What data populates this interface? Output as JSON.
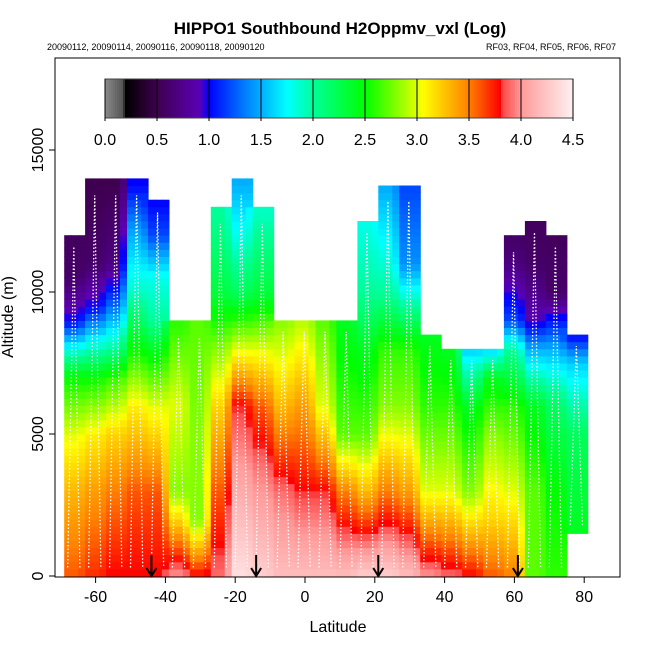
{
  "chart_data": {
    "type": "heatmap",
    "title": "HIPPO1 Southbound H2Oppmv_vxl (Log)",
    "subtitle_left": "20090112, 20090114, 20090116, 20090118, 20090120",
    "subtitle_right": "RF03, RF04, RF05, RF06, RF07",
    "xlabel": "Latitude",
    "ylabel": "Altitude (m)",
    "xlim": [
      -72,
      90
    ],
    "ylim": [
      0,
      18300
    ],
    "x_ticks": [
      -60,
      -40,
      -20,
      0,
      20,
      40,
      60,
      80
    ],
    "x_tick_labels": [
      "-60",
      "-40",
      "-20",
      "0",
      "20",
      "40",
      "60",
      "80"
    ],
    "y_ticks": [
      0,
      5000,
      10000,
      15000
    ],
    "y_tick_labels": [
      "0",
      "5000",
      "10000",
      "15000"
    ],
    "colorbar": {
      "range": [
        0,
        4.5
      ],
      "ticks": [
        0,
        0.5,
        1,
        1.5,
        2,
        2.5,
        3,
        3.5,
        4,
        4.5
      ],
      "tick_labels": [
        "0.0",
        "0.5",
        "1.0",
        "1.5",
        "2.0",
        "2.5",
        "3.0",
        "3.5",
        "4.0",
        "4.5"
      ],
      "color_stops": [
        [
          0,
          "#8a8a8a"
        ],
        [
          0.17,
          "#555555"
        ],
        [
          0.2,
          "#000000"
        ],
        [
          0.5,
          "#3f0050"
        ],
        [
          0.9,
          "#5a00b4"
        ],
        [
          1.0,
          "#0000ff"
        ],
        [
          1.35,
          "#0080ff"
        ],
        [
          1.75,
          "#00ffff"
        ],
        [
          2.0,
          "#00ff98"
        ],
        [
          2.5,
          "#00ff00"
        ],
        [
          3.0,
          "#e0ff00"
        ],
        [
          3.05,
          "#ffff00"
        ],
        [
          3.5,
          "#ff8000"
        ],
        [
          3.8,
          "#ff0000"
        ],
        [
          3.82,
          "#ff4848"
        ],
        [
          4.0,
          "#ff9a9a"
        ],
        [
          4.5,
          "#fff2f2"
        ]
      ]
    },
    "column_width_deg": 6,
    "profiles": [
      {
        "lat": -66,
        "top": 12000,
        "points": [
          [
            0,
            3.6
          ],
          [
            3000,
            3.3
          ],
          [
            5000,
            3.0
          ],
          [
            7000,
            2.5
          ],
          [
            8000,
            1.8
          ],
          [
            9000,
            1.0
          ],
          [
            10500,
            0.6
          ],
          [
            12000,
            0.55
          ]
        ]
      },
      {
        "lat": -60,
        "top": 13800,
        "points": [
          [
            0,
            3.7
          ],
          [
            3000,
            3.4
          ],
          [
            5000,
            3.1
          ],
          [
            7000,
            2.5
          ],
          [
            8200,
            1.8
          ],
          [
            9500,
            1.0
          ],
          [
            11000,
            0.6
          ],
          [
            13800,
            0.5
          ]
        ]
      },
      {
        "lat": -54,
        "top": 13800,
        "points": [
          [
            0,
            3.8
          ],
          [
            3000,
            3.5
          ],
          [
            5000,
            3.2
          ],
          [
            7000,
            2.6
          ],
          [
            8000,
            2.0
          ],
          [
            9500,
            1.3
          ],
          [
            11000,
            0.7
          ],
          [
            13800,
            0.5
          ]
        ]
      },
      {
        "lat": -48,
        "top": 13800,
        "points": [
          [
            0,
            3.8
          ],
          [
            3000,
            3.6
          ],
          [
            6000,
            3.1
          ],
          [
            8000,
            2.5
          ],
          [
            10000,
            1.9
          ],
          [
            12000,
            1.5
          ],
          [
            13800,
            1.0
          ]
        ]
      },
      {
        "lat": -42,
        "top": 13200,
        "points": [
          [
            0,
            3.8
          ],
          [
            3000,
            3.6
          ],
          [
            6000,
            3.0
          ],
          [
            8000,
            2.4
          ],
          [
            9000,
            2.0
          ],
          [
            10500,
            1.8
          ],
          [
            12000,
            1.2
          ],
          [
            13200,
            1.0
          ]
        ]
      },
      {
        "lat": -36,
        "top": 8800,
        "points": [
          [
            0,
            4.0
          ],
          [
            1500,
            3.4
          ],
          [
            3000,
            2.8
          ],
          [
            6000,
            3.0
          ],
          [
            8800,
            2.6
          ]
        ]
      },
      {
        "lat": -30,
        "top": 8800,
        "points": [
          [
            0,
            3.8
          ],
          [
            2000,
            2.8
          ],
          [
            5000,
            2.8
          ],
          [
            8800,
            2.7
          ]
        ]
      },
      {
        "lat": -24,
        "top": 12800,
        "points": [
          [
            0,
            3.9
          ],
          [
            3000,
            3.6
          ],
          [
            6000,
            3.2
          ],
          [
            8000,
            2.8
          ],
          [
            10000,
            2.3
          ],
          [
            12800,
            2.0
          ]
        ]
      },
      {
        "lat": -18,
        "top": 13800,
        "points": [
          [
            0,
            4.4
          ],
          [
            2000,
            4.2
          ],
          [
            4000,
            4.0
          ],
          [
            6000,
            3.8
          ],
          [
            7000,
            3.4
          ],
          [
            8000,
            3.0
          ],
          [
            10000,
            2.2
          ],
          [
            12000,
            1.8
          ],
          [
            13800,
            1.5
          ]
        ]
      },
      {
        "lat": -12,
        "top": 12800,
        "points": [
          [
            0,
            4.3
          ],
          [
            2000,
            4.1
          ],
          [
            4000,
            3.9
          ],
          [
            6000,
            3.6
          ],
          [
            8000,
            3.0
          ],
          [
            10000,
            2.3
          ],
          [
            12800,
            1.9
          ]
        ]
      },
      {
        "lat": -6,
        "top": 9000,
        "points": [
          [
            0,
            4.2
          ],
          [
            3000,
            3.9
          ],
          [
            6000,
            3.3
          ],
          [
            9000,
            2.8
          ]
        ]
      },
      {
        "lat": 0,
        "top": 9000,
        "points": [
          [
            0,
            4.2
          ],
          [
            3000,
            3.8
          ],
          [
            6000,
            3.4
          ],
          [
            9000,
            2.9
          ]
        ]
      },
      {
        "lat": 6,
        "top": 9000,
        "points": [
          [
            0,
            4.2
          ],
          [
            3000,
            3.8
          ],
          [
            6000,
            3.0
          ],
          [
            9000,
            2.7
          ]
        ]
      },
      {
        "lat": 12,
        "top": 9000,
        "points": [
          [
            0,
            4.2
          ],
          [
            3000,
            3.5
          ],
          [
            5000,
            2.7
          ],
          [
            9000,
            2.4
          ]
        ]
      },
      {
        "lat": 18,
        "top": 12500,
        "points": [
          [
            0,
            4.3
          ],
          [
            3000,
            3.3
          ],
          [
            5000,
            2.7
          ],
          [
            8000,
            2.4
          ],
          [
            10000,
            2.0
          ],
          [
            12500,
            1.8
          ]
        ]
      },
      {
        "lat": 24,
        "top": 13600,
        "points": [
          [
            0,
            4.3
          ],
          [
            3000,
            3.5
          ],
          [
            6000,
            2.8
          ],
          [
            8000,
            2.6
          ],
          [
            10000,
            2.0
          ],
          [
            13600,
            1.5
          ]
        ]
      },
      {
        "lat": 30,
        "top": 13600,
        "points": [
          [
            0,
            4.2
          ],
          [
            3000,
            3.4
          ],
          [
            6000,
            2.8
          ],
          [
            8000,
            2.6
          ],
          [
            11000,
            1.4
          ],
          [
            13600,
            1.2
          ]
        ]
      },
      {
        "lat": 36,
        "top": 8500,
        "points": [
          [
            0,
            4.0
          ],
          [
            3000,
            3.0
          ],
          [
            6000,
            2.6
          ],
          [
            8500,
            2.4
          ]
        ]
      },
      {
        "lat": 42,
        "top": 8000,
        "points": [
          [
            0,
            3.9
          ],
          [
            3000,
            3.0
          ],
          [
            6000,
            2.6
          ],
          [
            8000,
            2.4
          ]
        ]
      },
      {
        "lat": 48,
        "top": 8000,
        "points": [
          [
            0,
            3.8
          ],
          [
            3000,
            2.8
          ],
          [
            6000,
            2.4
          ],
          [
            8000,
            1.6
          ]
        ]
      },
      {
        "lat": 54,
        "top": 8000,
        "points": [
          [
            0,
            3.6
          ],
          [
            2000,
            3.2
          ],
          [
            5000,
            2.8
          ],
          [
            7000,
            2.4
          ],
          [
            8000,
            1.6
          ]
        ]
      },
      {
        "lat": 60,
        "top": 11800,
        "points": [
          [
            0,
            3.5
          ],
          [
            3000,
            3.0
          ],
          [
            6000,
            2.6
          ],
          [
            8000,
            2.0
          ],
          [
            9000,
            1.2
          ],
          [
            11000,
            0.7
          ],
          [
            11800,
            0.6
          ]
        ]
      },
      {
        "lat": 66,
        "top": 12500,
        "points": [
          [
            0,
            2.7
          ],
          [
            3000,
            2.7
          ],
          [
            6000,
            2.4
          ],
          [
            8000,
            1.5
          ],
          [
            9000,
            0.9
          ],
          [
            11000,
            0.6
          ],
          [
            12500,
            0.55
          ]
        ]
      },
      {
        "lat": 72,
        "top": 12000,
        "points": [
          [
            0,
            2.6
          ],
          [
            3000,
            2.5
          ],
          [
            6000,
            2.2
          ],
          [
            8000,
            1.5
          ],
          [
            10000,
            0.6
          ],
          [
            12000,
            0.55
          ]
        ]
      },
      {
        "lat": 78,
        "top": 8500,
        "points": [
          [
            1500,
            2.4
          ],
          [
            5000,
            2.2
          ],
          [
            7500,
            1.6
          ],
          [
            8500,
            1.0
          ]
        ]
      }
    ],
    "arrow_latitudes": [
      -44,
      -14,
      21,
      61
    ],
    "grid": false
  }
}
